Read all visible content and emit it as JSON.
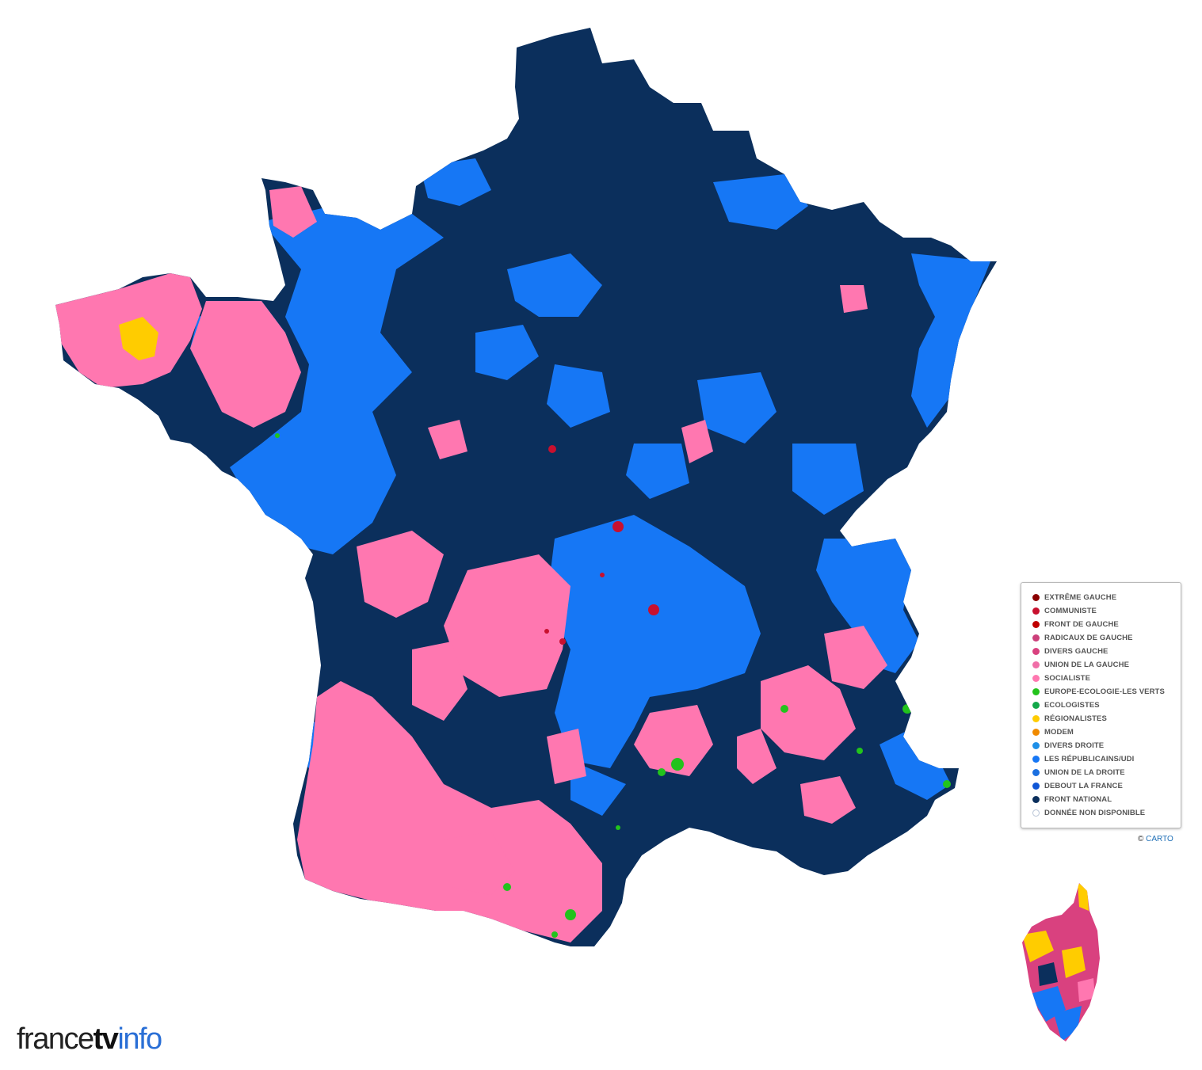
{
  "legend": {
    "items": [
      {
        "label": "EXTRÊME GAUCHE",
        "color": "#8b0000"
      },
      {
        "label": "COMMUNISTE",
        "color": "#c8102e"
      },
      {
        "label": "FRONT DE GAUCHE",
        "color": "#c00000"
      },
      {
        "label": "RADICAUX DE GAUCHE",
        "color": "#cc3f7a"
      },
      {
        "label": "DIVERS GAUCHE",
        "color": "#d9417f"
      },
      {
        "label": "UNION DE LA GAUCHE",
        "color": "#f06fa8"
      },
      {
        "label": "SOCIALISTE",
        "color": "#ff77b0"
      },
      {
        "label": "EUROPE-ECOLOGIE-LES VERTS",
        "color": "#22c31c"
      },
      {
        "label": "ECOLOGISTES",
        "color": "#12a84a"
      },
      {
        "label": "RÉGIONALISTES",
        "color": "#ffcc00"
      },
      {
        "label": "MODEM",
        "color": "#f08a00"
      },
      {
        "label": "DIVERS DROITE",
        "color": "#1e90e8"
      },
      {
        "label": "LES RÉPUBLICAINS/UDI",
        "color": "#1677f5"
      },
      {
        "label": "UNION DE LA DROITE",
        "color": "#1a6fe0"
      },
      {
        "label": "DEBOUT LA FRANCE",
        "color": "#0f56d6"
      },
      {
        "label": "FRONT NATIONAL",
        "color": "#0b2f5c"
      },
      {
        "label": "DONNÉE NON DISPONIBLE",
        "color": "#ffffff"
      }
    ]
  },
  "attribution": {
    "prefix": "©",
    "link": "CARTO"
  },
  "brand": {
    "part1": "france",
    "part2": "tv",
    "part3": "info"
  },
  "map_colors": {
    "front_national": "#0b2f5c",
    "republicains": "#1677f5",
    "socialiste": "#ff77b0",
    "ecologie": "#22c31c",
    "regionalistes": "#ffcc00",
    "communiste": "#c8102e",
    "divers_gauche": "#d9417f"
  }
}
